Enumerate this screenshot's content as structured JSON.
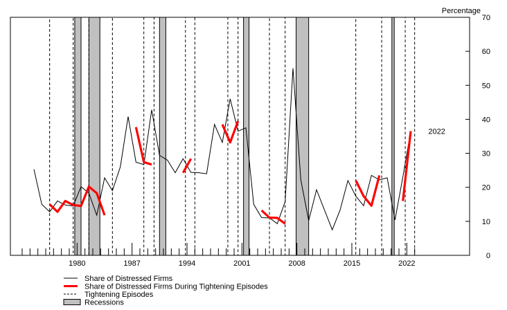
{
  "chart_data": {
    "type": "line",
    "ylabel": "Percentage",
    "ylim": [
      0,
      70
    ],
    "xlim": [
      1971.5,
      2030
    ],
    "y_axis_position": "right",
    "yticks": [
      0,
      10,
      20,
      30,
      40,
      50,
      60,
      70
    ],
    "xticks": [
      1980,
      1987,
      1994,
      2001,
      2008,
      2015,
      2022
    ],
    "xtick_labels": [
      "1980",
      "1987",
      "1994",
      "2001",
      "2008",
      "2015",
      "2022"
    ],
    "legend_position": "bottom-left",
    "annotation": {
      "text": "2022",
      "x": 2022.8,
      "y": 36.5
    },
    "series": [
      {
        "name": "Share of Distressed Firms",
        "color": "#000000",
        "x": [
          1974.5,
          1975.5,
          1976.5,
          1977.5,
          1978.5,
          1979.5,
          1980.5,
          1981.5,
          1982.5,
          1983.5,
          1984.5,
          1985.5,
          1986.5,
          1987.5,
          1988.5,
          1989.5,
          1990.5,
          1991.5,
          1992.5,
          1993.5,
          1994.5,
          1995.5,
          1996.5,
          1997.5,
          1998.5,
          1999.5,
          2000.5,
          2001.5,
          2002.5,
          2003.5,
          2004.5,
          2005.5,
          2006.5,
          2007.5,
          2008.5,
          2009.5,
          2010.5,
          2011.5,
          2012.5,
          2013.5,
          2014.5,
          2015.5,
          2016.5,
          2017.5,
          2018.5,
          2019.5,
          2020.5,
          2021.5,
          2022.5
        ],
        "y": [
          25.3,
          15,
          12.8,
          16,
          14.8,
          14.5,
          20.2,
          18.3,
          11.8,
          22.8,
          19,
          26,
          40.8,
          27.4,
          26.7,
          42.8,
          29.4,
          28,
          24.3,
          28.4,
          24.4,
          24.3,
          24,
          38.5,
          33.2,
          46,
          36.5,
          37.5,
          15,
          11.1,
          11,
          9.3,
          15.8,
          55,
          22.2,
          10.2,
          19.3,
          13.4,
          7.5,
          13.3,
          22,
          17.4,
          14.6,
          23.5,
          22.2,
          22.8,
          10.4,
          23.1,
          36.5
        ]
      },
      {
        "name": "Share of Distressed Firms During Tightening Episodes",
        "color": "#ff0000",
        "segments": [
          {
            "x": [
              1976.5,
              1977.5,
              1978.5,
              1979.5,
              1980.5,
              1981.5,
              1982.5,
              1983.5
            ],
            "y": [
              15,
              12.8,
              16,
              14.8,
              14.5,
              20.2,
              18.3,
              11.8
            ]
          },
          {
            "x": [
              1987.5,
              1988.5,
              1989.5
            ],
            "y": [
              37.7,
              27.4,
              26.7
            ]
          },
          {
            "x": [
              1993.5,
              1994.5
            ],
            "y": [
              24.3,
              28.4
            ]
          },
          {
            "x": [
              1998.5,
              1999.5,
              2000.5
            ],
            "y": [
              38.5,
              33.2,
              39.5
            ]
          },
          {
            "x": [
              2003.5,
              2004.5,
              2005.5,
              2006.5
            ],
            "y": [
              13.2,
              11.1,
              11,
              9.3
            ]
          },
          {
            "x": [
              2015.5,
              2016.5,
              2017.5,
              2018.5
            ],
            "y": [
              22,
              17.4,
              14.6,
              23.5
            ]
          },
          {
            "x": [
              2021.5,
              2022.5
            ],
            "y": [
              16,
              36.5
            ]
          }
        ]
      }
    ],
    "tightening_episodes": [
      [
        1976.5,
        1979.5
      ],
      [
        1981.5,
        1984.5
      ],
      [
        1988.5,
        1989.8
      ],
      [
        1993.8,
        1995
      ],
      [
        1999.2,
        2000.5
      ],
      [
        2004.5,
        2006.5
      ],
      [
        2015.5,
        2018.8
      ],
      [
        2021.8,
        2023
      ]
    ],
    "recessions": [
      [
        1979.7,
        1980.5
      ],
      [
        1981.5,
        1982.9
      ],
      [
        1990.5,
        1991.3
      ],
      [
        2001.2,
        2001.9
      ],
      [
        2007.9,
        2009.5
      ],
      [
        2020.1,
        2020.4
      ]
    ],
    "legend": [
      {
        "label": "Share of Distressed Firms",
        "style": "solid-black"
      },
      {
        "label": "Share of Distressed Firms During Tightening Episodes",
        "style": "thick-red"
      },
      {
        "label": "Tightening Episodes",
        "style": "dashed-black"
      },
      {
        "label": "Recessions",
        "style": "gray-box"
      }
    ]
  }
}
